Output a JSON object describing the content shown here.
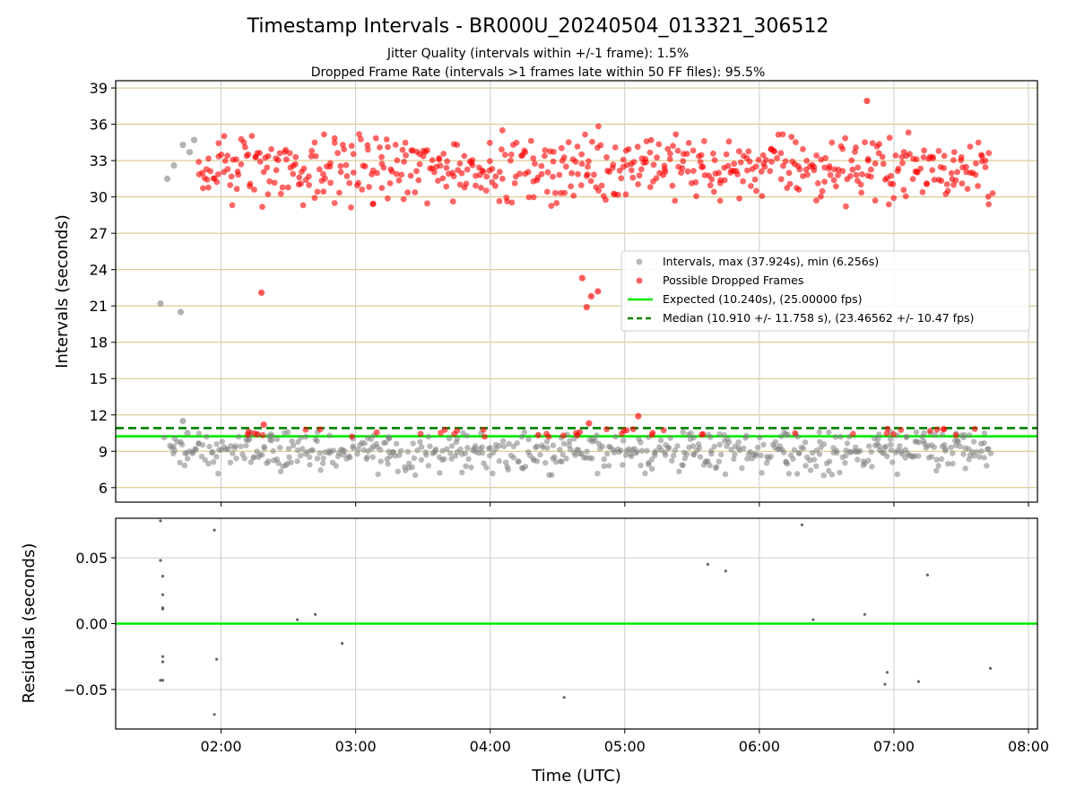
{
  "title": "Timestamp Intervals - BR000U_20240504_013321_306512",
  "subtitle_1": "Jitter Quality (intervals within +/-1 frame): 1.5%",
  "subtitle_2": "Dropped Frame Rate (intervals >1 frames late within 50 FF files): 95.5%",
  "colors": {
    "intervals": "#808080",
    "dropped": "#ff0000",
    "expected": "#00e800",
    "median": "#008000",
    "hgrid": "#d4c07a",
    "vgrid": "#cccccc",
    "residuals": "#555555"
  },
  "chart_data": [
    {
      "type": "scatter",
      "ylabel": "Intervals (seconds)",
      "xlim": [
        "01:13",
        "08:04"
      ],
      "ylim": [
        4.8,
        39.6
      ],
      "yticks": [
        "6",
        "9",
        "12",
        "15",
        "18",
        "21",
        "24",
        "27",
        "30",
        "33",
        "36",
        "39"
      ],
      "grid": "horizontal + vertical",
      "legend_placement": "right",
      "legend": [
        "Intervals, max (37.924s), min (6.256s)",
        "Possible Dropped Frames",
        "Expected (10.240s), (25.00000 fps)",
        "Median (10.910 +/- 11.758 s), (23.46562 +/- 10.47 fps)"
      ],
      "reference_lines": [
        {
          "name": "Expected",
          "y": 10.24,
          "style": "solid"
        },
        {
          "name": "Median",
          "y": 10.91,
          "style": "dashed"
        }
      ],
      "series": [
        {
          "name": "Intervals",
          "x_range": [
            "01:33",
            "07:44"
          ],
          "y_band": [
            6.256,
            10.2
          ],
          "outliers": [
            {
              "x": "01:33",
              "y": 21.2
            },
            {
              "x": "01:42",
              "y": 20.5
            },
            {
              "x": "01:36",
              "y": 31.5
            },
            {
              "x": "01:39",
              "y": 32.6
            },
            {
              "x": "01:43",
              "y": 34.3
            },
            {
              "x": "01:46",
              "y": 33.7
            },
            {
              "x": "01:48",
              "y": 34.7
            },
            {
              "x": "01:43",
              "y": 11.5
            },
            {
              "x": "01:45",
              "y": 10.5
            }
          ]
        },
        {
          "name": "Possible Dropped Frames",
          "x_range": [
            "01:50",
            "07:44"
          ],
          "y_band": [
            26.8,
            37.924
          ],
          "outliers": [
            {
              "x": "02:18",
              "y": 22.1
            },
            {
              "x": "04:41",
              "y": 23.3
            },
            {
              "x": "04:43",
              "y": 20.9
            },
            {
              "x": "04:45",
              "y": 21.8
            },
            {
              "x": "04:48",
              "y": 22.2
            },
            {
              "x": "06:48",
              "y": 37.924
            },
            {
              "x": "02:19",
              "y": 11.2
            },
            {
              "x": "04:44",
              "y": 11.3
            },
            {
              "x": "05:06",
              "y": 11.9
            }
          ]
        }
      ]
    },
    {
      "type": "scatter",
      "xlabel": "Time (UTC)",
      "ylabel": "Residuals (seconds)",
      "ylim": [
        -0.08,
        0.08
      ],
      "yticks": [
        "−0.05",
        "0.00",
        "0.05"
      ],
      "xticks": [
        "02:00",
        "03:00",
        "04:00",
        "05:00",
        "06:00",
        "07:00",
        "08:00"
      ],
      "reference_lines": [
        {
          "name": "zero",
          "y": 0,
          "style": "solid"
        }
      ],
      "series": [
        {
          "name": "Residuals",
          "points": [
            {
              "x": "01:33",
              "y": 0.078
            },
            {
              "x": "01:33",
              "y": 0.048
            },
            {
              "x": "01:34",
              "y": 0.036
            },
            {
              "x": "01:34",
              "y": 0.022
            },
            {
              "x": "01:34",
              "y": 0.012
            },
            {
              "x": "01:34",
              "y": 0.011
            },
            {
              "x": "01:34",
              "y": -0.025
            },
            {
              "x": "01:34",
              "y": -0.029
            },
            {
              "x": "01:33",
              "y": -0.043
            },
            {
              "x": "01:34",
              "y": -0.043
            },
            {
              "x": "01:57",
              "y": 0.071
            },
            {
              "x": "01:58",
              "y": -0.027
            },
            {
              "x": "01:57",
              "y": -0.069
            },
            {
              "x": "02:34",
              "y": 0.003
            },
            {
              "x": "02:42",
              "y": 0.007
            },
            {
              "x": "02:54",
              "y": -0.015
            },
            {
              "x": "04:33",
              "y": -0.056
            },
            {
              "x": "05:37",
              "y": 0.045
            },
            {
              "x": "05:45",
              "y": 0.04
            },
            {
              "x": "06:19",
              "y": 0.075
            },
            {
              "x": "06:24",
              "y": 0.003
            },
            {
              "x": "06:47",
              "y": 0.007
            },
            {
              "x": "06:56",
              "y": -0.046
            },
            {
              "x": "06:57",
              "y": -0.037
            },
            {
              "x": "07:11",
              "y": -0.044
            },
            {
              "x": "07:15",
              "y": 0.037
            },
            {
              "x": "07:43",
              "y": -0.034
            }
          ]
        }
      ]
    }
  ]
}
